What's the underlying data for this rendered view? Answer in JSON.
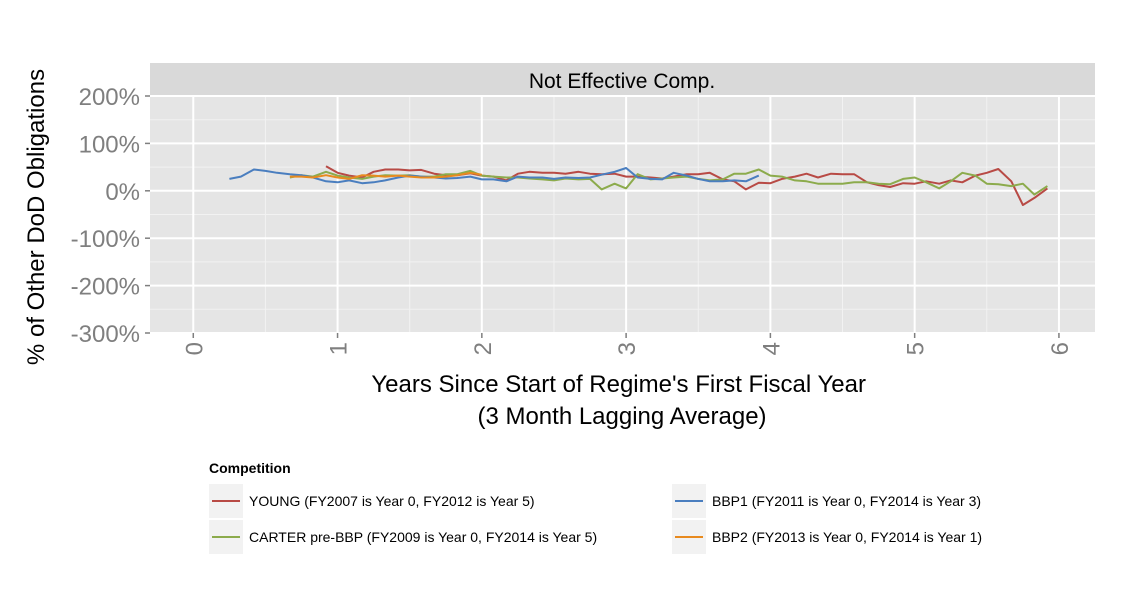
{
  "chart_data": {
    "type": "line",
    "facet_title": "Not Effective Comp.",
    "xlabel": "Years Since Start of Regime's First Fiscal Year\n(3 Month Lagging Average)",
    "ylabel": "% of Other DoD Obligations",
    "xlim": [
      -0.3,
      6.25
    ],
    "ylim": [
      -3.0,
      2.0
    ],
    "x_ticks": [
      0,
      1,
      2,
      3,
      4,
      5,
      6
    ],
    "x_tick_labels": [
      "0",
      "1",
      "2",
      "3",
      "4",
      "5",
      "6"
    ],
    "y_ticks": [
      -3,
      -2,
      -1,
      0,
      1,
      2
    ],
    "y_tick_labels": [
      "-300%",
      "-200%",
      "-100%",
      "0%",
      "100%",
      "200%"
    ],
    "grid": true,
    "legend_title": "Competition",
    "legend_position": "bottom",
    "series": [
      {
        "name": "YOUNG (FY2007 is Year 0, FY2012 is Year 5)",
        "color": "#b84a45",
        "x": [
          0.92,
          1.0,
          1.08,
          1.17,
          1.25,
          1.33,
          1.42,
          1.5,
          1.58,
          1.67,
          1.75,
          1.83,
          1.92,
          2.0,
          2.08,
          2.17,
          2.25,
          2.33,
          2.42,
          2.5,
          2.58,
          2.67,
          2.75,
          2.83,
          2.92,
          3.0,
          3.08,
          3.17,
          3.25,
          3.33,
          3.42,
          3.5,
          3.58,
          3.67,
          3.75,
          3.83,
          3.92,
          4.0,
          4.08,
          4.17,
          4.25,
          4.33,
          4.42,
          4.5,
          4.58,
          4.67,
          4.75,
          4.83,
          4.92,
          5.0,
          5.08,
          5.17,
          5.25,
          5.33,
          5.42,
          5.5,
          5.58,
          5.67,
          5.75,
          5.83,
          5.92
        ],
        "values": [
          0.52,
          0.38,
          0.32,
          0.28,
          0.4,
          0.45,
          0.45,
          0.43,
          0.44,
          0.36,
          0.33,
          0.33,
          0.37,
          0.32,
          0.3,
          0.22,
          0.36,
          0.4,
          0.38,
          0.38,
          0.36,
          0.4,
          0.36,
          0.35,
          0.36,
          0.3,
          0.3,
          0.28,
          0.26,
          0.3,
          0.35,
          0.35,
          0.38,
          0.24,
          0.2,
          0.03,
          0.17,
          0.16,
          0.25,
          0.3,
          0.36,
          0.28,
          0.36,
          0.35,
          0.35,
          0.18,
          0.12,
          0.08,
          0.16,
          0.15,
          0.2,
          0.15,
          0.22,
          0.18,
          0.32,
          0.38,
          0.46,
          0.2,
          -0.3,
          -0.15,
          0.05
        ]
      },
      {
        "name": "CARTER pre-BBP (FY2009 is Year 0, FY2014 is Year 5)",
        "color": "#8cab4c",
        "x": [
          0.67,
          0.75,
          0.83,
          0.92,
          1.0,
          1.08,
          1.17,
          1.25,
          1.33,
          1.42,
          1.5,
          1.58,
          1.67,
          1.75,
          1.83,
          1.92,
          2.0,
          2.08,
          2.17,
          2.25,
          2.33,
          2.42,
          2.5,
          2.58,
          2.67,
          2.75,
          2.83,
          2.92,
          3.0,
          3.08,
          3.17,
          3.25,
          3.33,
          3.42,
          3.5,
          3.58,
          3.67,
          3.75,
          3.83,
          3.92,
          4.0,
          4.08,
          4.17,
          4.25,
          4.33,
          4.42,
          4.5,
          4.58,
          4.67,
          4.75,
          4.83,
          4.92,
          5.0,
          5.08,
          5.17,
          5.25,
          5.33,
          5.42,
          5.5,
          5.58,
          5.67,
          5.75,
          5.83,
          5.92
        ],
        "values": [
          0.28,
          0.33,
          0.3,
          0.4,
          0.32,
          0.28,
          0.25,
          0.3,
          0.33,
          0.32,
          0.33,
          0.3,
          0.3,
          0.35,
          0.35,
          0.42,
          0.32,
          0.3,
          0.28,
          0.28,
          0.26,
          0.24,
          0.22,
          0.26,
          0.24,
          0.25,
          0.03,
          0.15,
          0.05,
          0.35,
          0.24,
          0.26,
          0.28,
          0.3,
          0.25,
          0.22,
          0.24,
          0.36,
          0.36,
          0.45,
          0.32,
          0.3,
          0.22,
          0.2,
          0.15,
          0.15,
          0.15,
          0.18,
          0.18,
          0.15,
          0.14,
          0.25,
          0.28,
          0.18,
          0.05,
          0.2,
          0.38,
          0.32,
          0.15,
          0.14,
          0.1,
          0.15,
          -0.08,
          0.1
        ]
      },
      {
        "name": "BBP1 (FY2011 is Year 0, FY2014 is Year 3)",
        "color": "#4a7ebf",
        "x": [
          0.25,
          0.33,
          0.42,
          0.5,
          0.58,
          0.67,
          0.75,
          0.83,
          0.92,
          1.0,
          1.08,
          1.17,
          1.25,
          1.33,
          1.42,
          1.5,
          1.58,
          1.67,
          1.75,
          1.83,
          1.92,
          2.0,
          2.08,
          2.17,
          2.25,
          2.33,
          2.42,
          2.5,
          2.58,
          2.67,
          2.75,
          2.83,
          2.92,
          3.0,
          3.08,
          3.17,
          3.25,
          3.33,
          3.42,
          3.5,
          3.58,
          3.67,
          3.75,
          3.83,
          3.92
        ],
        "values": [
          0.25,
          0.3,
          0.45,
          0.42,
          0.38,
          0.35,
          0.33,
          0.28,
          0.2,
          0.18,
          0.22,
          0.16,
          0.18,
          0.22,
          0.28,
          0.32,
          0.3,
          0.28,
          0.26,
          0.27,
          0.3,
          0.24,
          0.24,
          0.2,
          0.3,
          0.28,
          0.28,
          0.25,
          0.28,
          0.27,
          0.28,
          0.34,
          0.4,
          0.48,
          0.28,
          0.25,
          0.24,
          0.38,
          0.32,
          0.25,
          0.2,
          0.2,
          0.22,
          0.2,
          0.32
        ]
      },
      {
        "name": "BBP2 (FY2013 is Year 0, FY2014 is Year 1)",
        "color": "#e88a1e",
        "x": [
          0.67,
          0.75,
          0.83,
          0.92,
          1.0,
          1.08,
          1.17,
          1.25,
          1.33,
          1.42,
          1.5,
          1.58,
          1.67,
          1.75,
          1.83,
          1.92,
          2.0
        ],
        "values": [
          0.3,
          0.3,
          0.28,
          0.33,
          0.28,
          0.25,
          0.33,
          0.32,
          0.3,
          0.32,
          0.3,
          0.28,
          0.28,
          0.3,
          0.33,
          0.38,
          0.34
        ]
      }
    ]
  }
}
